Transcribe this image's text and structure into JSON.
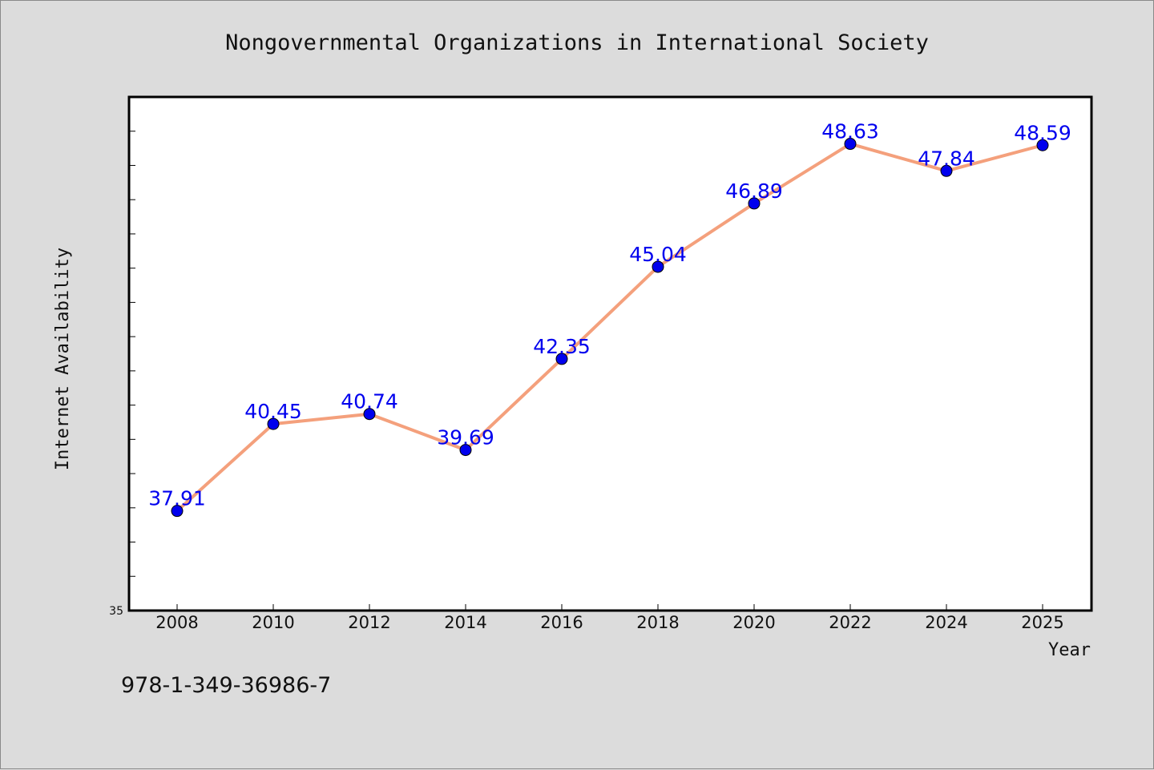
{
  "chart_data": {
    "type": "line",
    "title": "Nongovernmental Organizations in International Society",
    "xlabel": "Year",
    "ylabel": "Internet Availability",
    "categories": [
      "2008",
      "2010",
      "2012",
      "2014",
      "2016",
      "2018",
      "2020",
      "2022",
      "2024",
      "2025"
    ],
    "series": [
      {
        "values": [
          37.91,
          40.45,
          40.74,
          39.69,
          42.35,
          45.04,
          46.89,
          48.63,
          47.84,
          48.59
        ],
        "labels": [
          "37.91",
          "40.45",
          "40.74",
          "39.69",
          "42.35",
          "45.04",
          "46.89",
          "48.63",
          "47.84",
          "48.59"
        ]
      }
    ],
    "ylim": [
      35,
      50
    ],
    "ytick_labels": [
      "35"
    ],
    "grid": false,
    "legend": "none",
    "line_color": "#f4a07c",
    "marker_color": "#0000ee",
    "label_color": "#0000ee"
  },
  "footer": {
    "isbn": "978-1-349-36986-7"
  }
}
